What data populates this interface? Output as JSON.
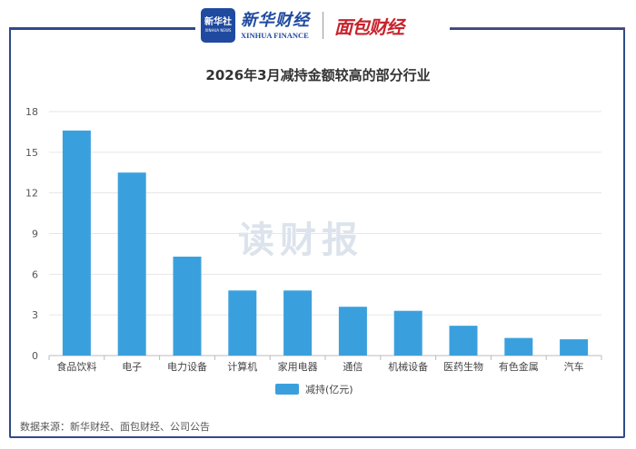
{
  "header": {
    "badge_text": "新华社",
    "badge_sub": "XINHUA NEWS",
    "brand_cn": "新华财经",
    "brand_en": "XINHUA FINANCE",
    "logo2": "面包财经"
  },
  "watermark": "读财报",
  "source": "数据来源：新华财经、面包财经、公司公告",
  "colors": {
    "bar": "#3aa0dd",
    "frame": "#2f4a8a",
    "accent": "#c23a3a"
  },
  "chart_data": {
    "type": "bar",
    "title": "2026年3月减持金额较高的部分行业",
    "categories": [
      "食品饮料",
      "电子",
      "电力设备",
      "计算机",
      "家用电器",
      "通信",
      "机械设备",
      "医药生物",
      "有色金属",
      "汽车"
    ],
    "series": [
      {
        "name": "减持(亿元)",
        "values": [
          16.6,
          13.5,
          7.3,
          4.8,
          4.8,
          3.6,
          3.3,
          2.2,
          1.3,
          1.2
        ]
      }
    ],
    "ylim": [
      0,
      18
    ],
    "yticks": [
      "0",
      "3",
      "6",
      "9",
      "12",
      "15",
      "18"
    ],
    "grid": true,
    "legend": "bottom"
  }
}
